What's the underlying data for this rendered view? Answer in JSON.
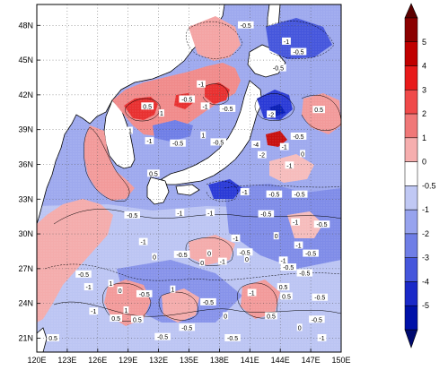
{
  "map": {
    "lat_ticks": [
      "48N",
      "45N",
      "42N",
      "39N",
      "36N",
      "33N",
      "30N",
      "27N",
      "24N",
      "21N"
    ],
    "lon_ticks": [
      "120E",
      "123E",
      "126E",
      "129E",
      "132E",
      "135E",
      "138E",
      "141E",
      "144E",
      "147E",
      "150E"
    ],
    "lat_range": [
      19.8,
      49.8
    ],
    "lon_range": [
      120,
      150
    ],
    "field_unit": "",
    "contour_labels": [
      {
        "text": "-0.5",
        "lon": 140.6,
        "lat": 48.0
      },
      {
        "text": "-1",
        "lon": 144.6,
        "lat": 46.6
      },
      {
        "text": "-0.5",
        "lon": 145.8,
        "lat": 45.7
      },
      {
        "text": "-0.5",
        "lon": 143.8,
        "lat": 44.3
      },
      {
        "text": "-1",
        "lon": 136.2,
        "lat": 42.9
      },
      {
        "text": "0.5",
        "lon": 130.9,
        "lat": 41.0
      },
      {
        "text": "1",
        "lon": 132.3,
        "lat": 40.4
      },
      {
        "text": "-0.5",
        "lon": 134.8,
        "lat": 41.6
      },
      {
        "text": "-1",
        "lon": 136.6,
        "lat": 41.0
      },
      {
        "text": "-0.5",
        "lon": 138.8,
        "lat": 40.8
      },
      {
        "text": "-2",
        "lon": 143.1,
        "lat": 40.3
      },
      {
        "text": "0.5",
        "lon": 147.8,
        "lat": 40.7
      },
      {
        "text": "1",
        "lon": 129.2,
        "lat": 38.9
      },
      {
        "text": "-1",
        "lon": 131.1,
        "lat": 38.0
      },
      {
        "text": "-0.5",
        "lon": 133.9,
        "lat": 37.8
      },
      {
        "text": "1",
        "lon": 136.4,
        "lat": 38.5
      },
      {
        "text": "-0.5",
        "lon": 137.9,
        "lat": 37.9
      },
      {
        "text": "-0.5",
        "lon": 145.8,
        "lat": 38.4
      },
      {
        "text": "-4",
        "lon": 141.6,
        "lat": 37.7
      },
      {
        "text": "-1",
        "lon": 144.4,
        "lat": 37.5
      },
      {
        "text": "-2",
        "lon": 142.2,
        "lat": 36.8
      },
      {
        "text": "0",
        "lon": 146.2,
        "lat": 36.9
      },
      {
        "text": "-1",
        "lon": 144.9,
        "lat": 35.9
      },
      {
        "text": "0.5",
        "lon": 131.5,
        "lat": 35.2
      },
      {
        "text": "-1",
        "lon": 140.5,
        "lat": 33.6
      },
      {
        "text": "-0.5",
        "lon": 143.4,
        "lat": 33.4
      },
      {
        "text": "-0.5",
        "lon": 145.9,
        "lat": 33.4
      },
      {
        "text": "-0.5",
        "lon": 129.4,
        "lat": 31.6
      },
      {
        "text": "-1",
        "lon": 134.1,
        "lat": 31.8
      },
      {
        "text": "-1",
        "lon": 137.1,
        "lat": 31.8
      },
      {
        "text": "-0.5",
        "lon": 142.6,
        "lat": 31.7
      },
      {
        "text": "-1",
        "lon": 145.5,
        "lat": 31.0
      },
      {
        "text": "-0.5",
        "lon": 148.1,
        "lat": 30.8
      },
      {
        "text": "-1",
        "lon": 130.5,
        "lat": 29.3
      },
      {
        "text": "-1",
        "lon": 139.6,
        "lat": 29.6
      },
      {
        "text": "0",
        "lon": 143.6,
        "lat": 29.8
      },
      {
        "text": "-1",
        "lon": 145.8,
        "lat": 29.0
      },
      {
        "text": "-0.5",
        "lon": 147.0,
        "lat": 28.3
      },
      {
        "text": "0",
        "lon": 136.3,
        "lat": 27.5
      },
      {
        "text": "-1",
        "lon": 138.3,
        "lat": 27.6
      },
      {
        "text": "0",
        "lon": 140.7,
        "lat": 27.8
      },
      {
        "text": "-1",
        "lon": 144.3,
        "lat": 27.7
      },
      {
        "text": "-0.5",
        "lon": 144.8,
        "lat": 27.1
      },
      {
        "text": "-0.5",
        "lon": 146.4,
        "lat": 26.6
      },
      {
        "text": "0",
        "lon": 131.6,
        "lat": 28.0
      },
      {
        "text": "-0.5",
        "lon": 134.3,
        "lat": 28.2
      },
      {
        "text": "0",
        "lon": 137.0,
        "lat": 28.3
      },
      {
        "text": "-0.5",
        "lon": 140.5,
        "lat": 28.4
      },
      {
        "text": "-0.5",
        "lon": 124.6,
        "lat": 26.5
      },
      {
        "text": "-1",
        "lon": 125.1,
        "lat": 25.4
      },
      {
        "text": "1",
        "lon": 127.3,
        "lat": 25.7
      },
      {
        "text": "0",
        "lon": 128.2,
        "lat": 25.1
      },
      {
        "text": "-0.5",
        "lon": 130.6,
        "lat": 24.8
      },
      {
        "text": "1",
        "lon": 133.4,
        "lat": 25.2
      },
      {
        "text": "-0.5",
        "lon": 136.9,
        "lat": 24.1
      },
      {
        "text": "0.5",
        "lon": 144.3,
        "lat": 25.4
      },
      {
        "text": "0.5",
        "lon": 144.6,
        "lat": 24.6
      },
      {
        "text": "-0.5",
        "lon": 147.9,
        "lat": 24.5
      },
      {
        "text": "-1",
        "lon": 141.2,
        "lat": 24.9
      },
      {
        "text": "-1",
        "lon": 125.6,
        "lat": 23.3
      },
      {
        "text": "1",
        "lon": 128.8,
        "lat": 23.4
      },
      {
        "text": "0.5",
        "lon": 127.8,
        "lat": 22.7
      },
      {
        "text": "0.5",
        "lon": 129.9,
        "lat": 22.6
      },
      {
        "text": "-0.5",
        "lon": 134.8,
        "lat": 21.9
      },
      {
        "text": "0",
        "lon": 138.6,
        "lat": 22.9
      },
      {
        "text": "0.5",
        "lon": 143.1,
        "lat": 22.9
      },
      {
        "text": "-0.5",
        "lon": 147.6,
        "lat": 22.6
      },
      {
        "text": "0.5",
        "lon": 121.6,
        "lat": 21.0
      },
      {
        "text": "-0.5",
        "lon": 132.4,
        "lat": 21.1
      },
      {
        "text": "-0.5",
        "lon": 139.3,
        "lat": 21.0
      },
      {
        "text": "0",
        "lon": 145.9,
        "lat": 21.9
      },
      {
        "text": "-1",
        "lon": 148.1,
        "lat": 21.0
      }
    ]
  },
  "colorbar": {
    "labels": [
      "5",
      "4",
      "3",
      "2",
      "1",
      "0",
      "-0.5",
      "-1",
      "-2",
      "-3",
      "-4",
      "-5"
    ],
    "colors": [
      "#8b0000",
      "#c00000",
      "#e81a1a",
      "#f04a4a",
      "#f07878",
      "#f6aeae",
      "#ffffff",
      "#c0c8f4",
      "#97a3ee",
      "#6f7ee6",
      "#4556dc",
      "#1a29c8",
      "#0011a8"
    ],
    "top_arrow_color": "#5c0000",
    "bottom_arrow_color": "#000a70"
  }
}
